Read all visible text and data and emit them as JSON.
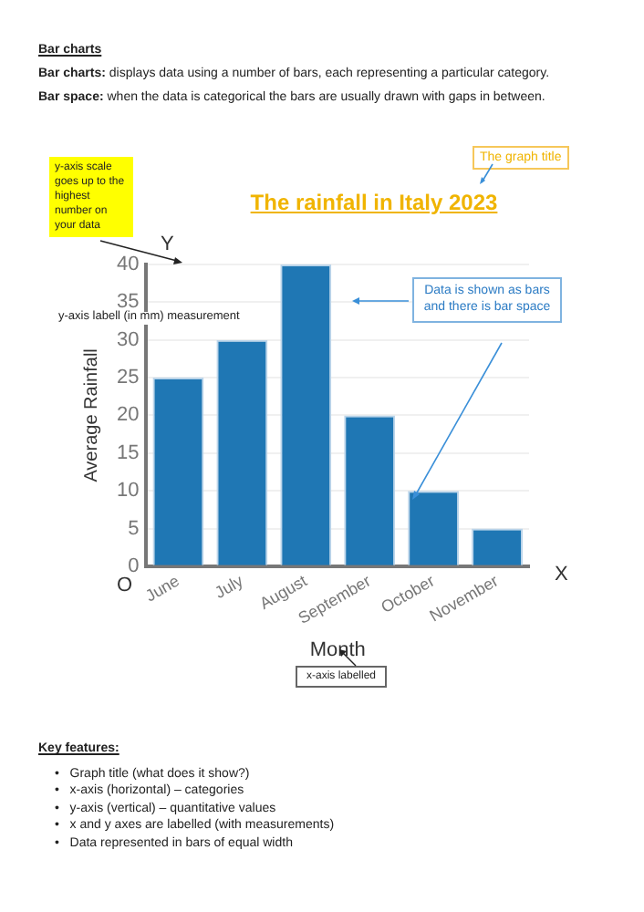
{
  "chart_data": {
    "type": "bar",
    "title": "The rainfall in Italy 2023",
    "xlabel": "Month",
    "ylabel": "Average Rainfall",
    "categories": [
      "June",
      "July",
      "August",
      "September",
      "October",
      "November"
    ],
    "values": [
      25,
      30,
      40,
      20,
      10,
      5
    ],
    "color": "#1f77b4",
    "ylim": [
      0,
      40
    ],
    "yticks": [
      0,
      5,
      10,
      15,
      20,
      25,
      30,
      35,
      40
    ],
    "grid": "y",
    "annotations": [
      "Bar charts",
      "Bar charts: displays data using a number of bars, each representing a particular category.",
      "Bar space: when the data is categorical the bars are usually drawn with gaps in between.",
      "The graph title",
      "y-axis scale goes up to the highest number on your data",
      "y-axis labell (in mm) measurement",
      "Data is shown as bars and there is bar space",
      "x-axis labelled",
      "Y",
      "X",
      "O",
      "Key features:",
      "•   Graph title (what does it show?)",
      "•   x-axis (horizontal) – categories",
      "•   y-axis (vertical) – quantitative values",
      "•   x and y axes are labelled (with measurements)",
      "•   Data represented in bars of equal width"
    ]
  }
}
